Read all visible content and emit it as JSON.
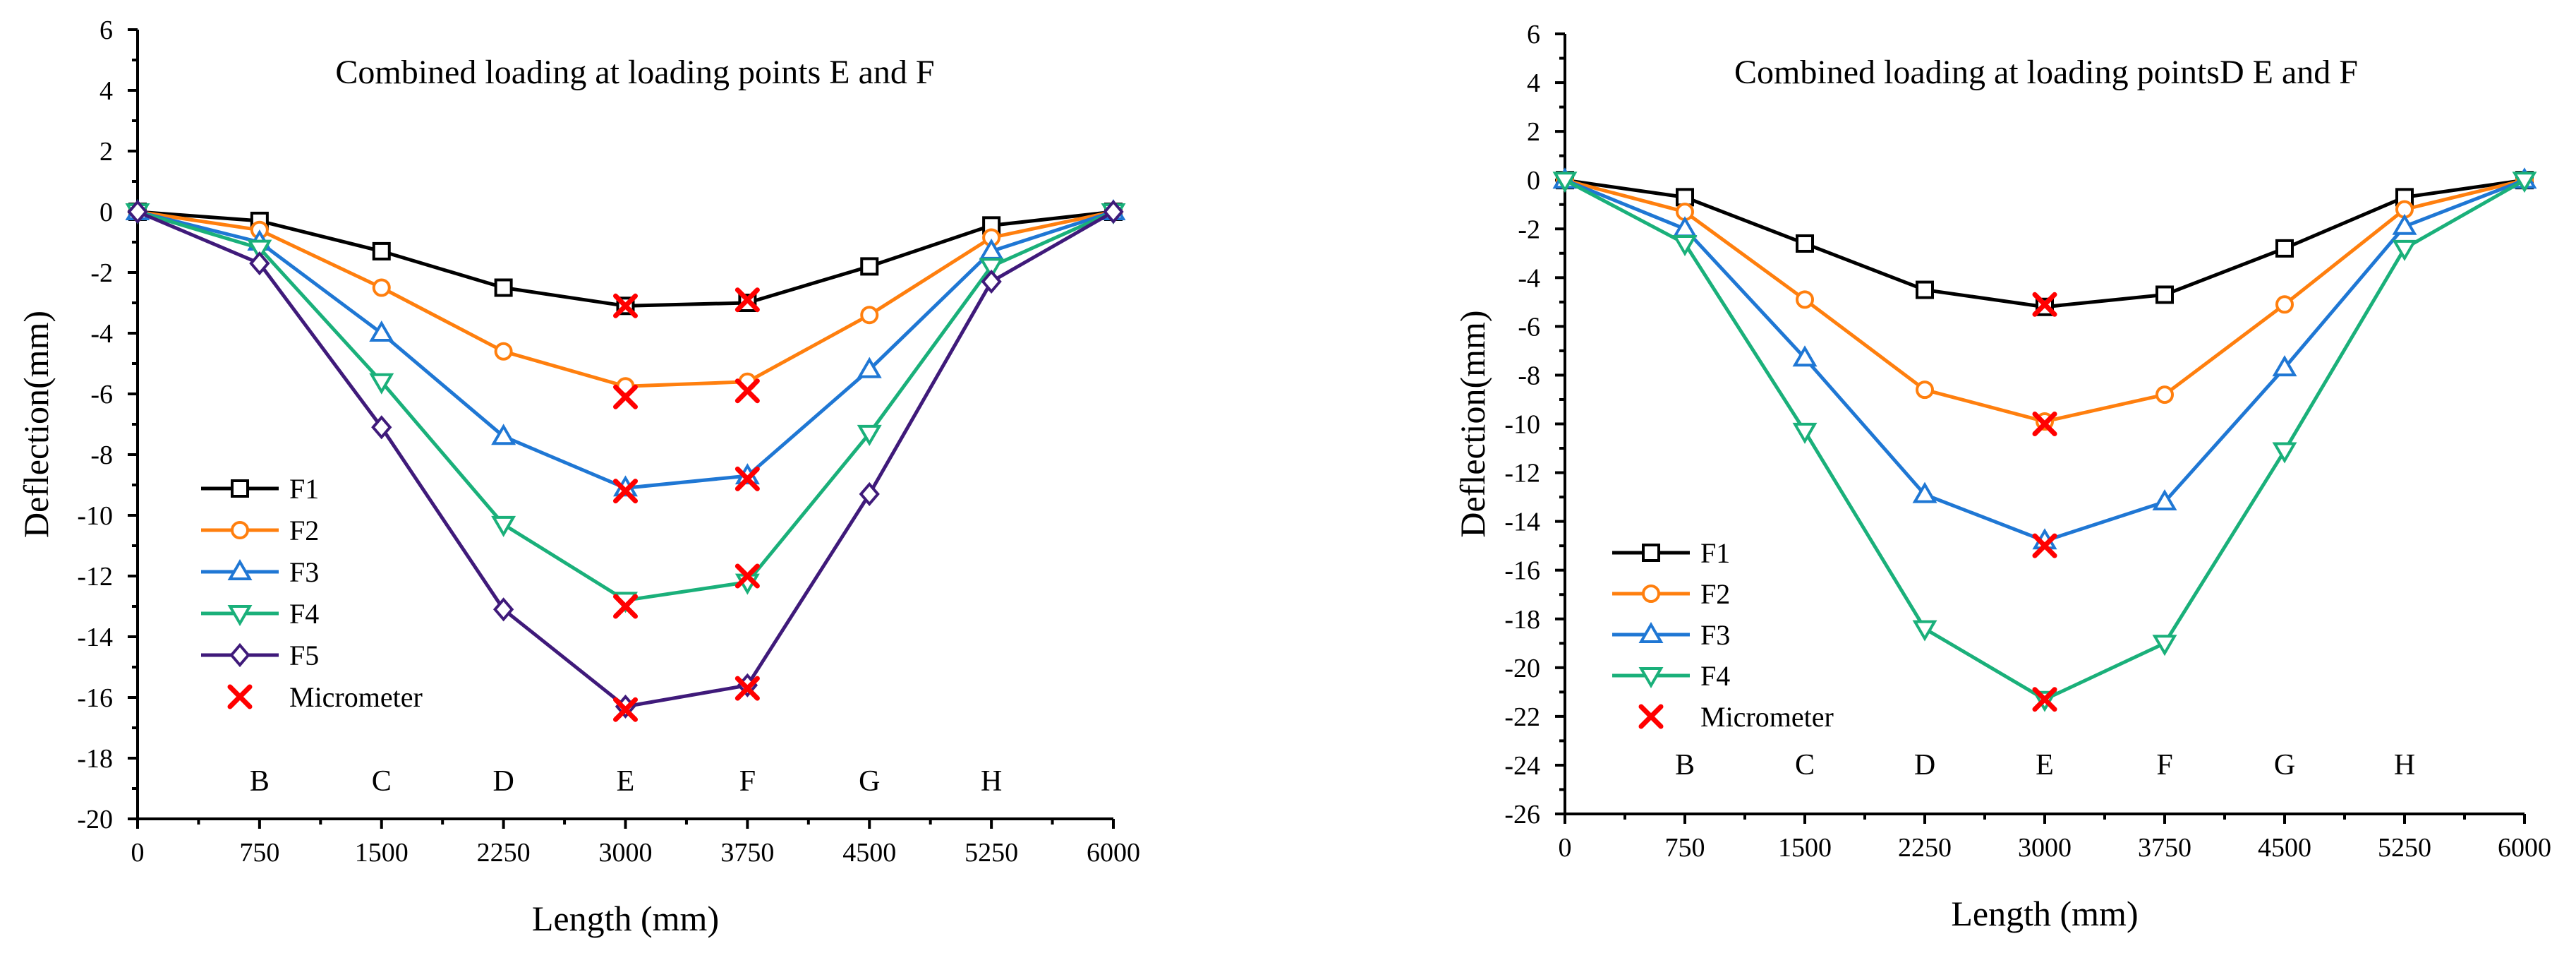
{
  "chart_data": [
    {
      "type": "line",
      "title": "Combined loading at loading points E and F",
      "xlabel": "Length (mm)",
      "ylabel": "Deflection(mm)",
      "x": [
        0,
        750,
        1500,
        2250,
        3000,
        3750,
        4500,
        5250,
        6000
      ],
      "xticks": [
        "0",
        "750",
        "1500",
        "2250",
        "3000",
        "3750",
        "4500",
        "5250",
        "6000"
      ],
      "xlim": [
        0,
        6000
      ],
      "ylim": [
        -20,
        6
      ],
      "yticks": [
        "6",
        "4",
        "2",
        "0",
        "-2",
        "-4",
        "-6",
        "-8",
        "-10",
        "-12",
        "-14",
        "-16",
        "-18",
        "-20"
      ],
      "point_labels": [
        "B",
        "C",
        "D",
        "E",
        "F",
        "G",
        "H"
      ],
      "series": [
        {
          "name": "F1",
          "color": "#000000",
          "marker": "square",
          "values": [
            0,
            -0.3,
            -1.3,
            -2.5,
            -3.1,
            -3.0,
            -1.8,
            -0.45,
            0
          ]
        },
        {
          "name": "F2",
          "color": "#ff7f0e",
          "marker": "circle",
          "values": [
            0,
            -0.6,
            -2.5,
            -4.6,
            -5.75,
            -5.6,
            -3.4,
            -0.85,
            0
          ]
        },
        {
          "name": "F3",
          "color": "#1f77d4",
          "marker": "triangle-up",
          "values": [
            0,
            -1.0,
            -4.0,
            -7.4,
            -9.1,
            -8.7,
            -5.2,
            -1.3,
            0
          ]
        },
        {
          "name": "F4",
          "color": "#1ab07a",
          "marker": "triangle-down",
          "values": [
            0,
            -1.2,
            -5.6,
            -10.3,
            -12.8,
            -12.2,
            -7.3,
            -1.8,
            0
          ]
        },
        {
          "name": "F5",
          "color": "#3f1a7a",
          "marker": "diamond",
          "values": [
            0,
            -1.7,
            -7.1,
            -13.1,
            -16.3,
            -15.6,
            -9.3,
            -2.3,
            0
          ]
        }
      ],
      "micrometer": {
        "name": "Micrometer",
        "color": "#ff0000",
        "x": [
          3000,
          3000,
          3000,
          3000,
          3000,
          3750,
          3750,
          3750,
          3750,
          3750
        ],
        "values": [
          -3.1,
          -6.1,
          -9.2,
          -13.0,
          -16.4,
          -2.9,
          -5.9,
          -8.8,
          -12.0,
          -15.7
        ]
      },
      "legend": [
        "F1",
        "F2",
        "F3",
        "F4",
        "F5",
        "Micrometer"
      ]
    },
    {
      "type": "line",
      "title": "Combined loading at loading pointsD  E and F",
      "xlabel": "Length (mm)",
      "ylabel": "Deflection(mm)",
      "x": [
        0,
        750,
        1500,
        2250,
        3000,
        3750,
        4500,
        5250,
        6000
      ],
      "xticks": [
        "0",
        "750",
        "1500",
        "2250",
        "3000",
        "3750",
        "4500",
        "5250",
        "6000"
      ],
      "xlim": [
        0,
        6000
      ],
      "ylim": [
        -26,
        6
      ],
      "yticks": [
        "6",
        "4",
        "2",
        "0",
        "-2",
        "-4",
        "-6",
        "-8",
        "-10",
        "-12",
        "-14",
        "-16",
        "-18",
        "-20",
        "-22",
        "-24",
        "-26"
      ],
      "point_labels": [
        "B",
        "C",
        "D",
        "E",
        "F",
        "G",
        "H"
      ],
      "series": [
        {
          "name": "F1",
          "color": "#000000",
          "marker": "square",
          "values": [
            0,
            -0.7,
            -2.6,
            -4.5,
            -5.2,
            -4.7,
            -2.8,
            -0.7,
            0
          ]
        },
        {
          "name": "F2",
          "color": "#ff7f0e",
          "marker": "circle",
          "values": [
            0,
            -1.3,
            -4.9,
            -8.6,
            -9.9,
            -8.8,
            -5.1,
            -1.2,
            0
          ]
        },
        {
          "name": "F3",
          "color": "#1f77d4",
          "marker": "triangle-up",
          "values": [
            0,
            -2.0,
            -7.3,
            -12.9,
            -14.8,
            -13.2,
            -7.7,
            -1.9,
            0
          ]
        },
        {
          "name": "F4",
          "color": "#1ab07a",
          "marker": "triangle-down",
          "values": [
            0,
            -2.6,
            -10.3,
            -18.4,
            -21.3,
            -19.0,
            -11.1,
            -2.8,
            0
          ]
        }
      ],
      "micrometer": {
        "name": "Micrometer",
        "color": "#ff0000",
        "x": [
          3000,
          3000,
          3000,
          3000
        ],
        "values": [
          -5.1,
          -10.0,
          -15.0,
          -21.3
        ]
      },
      "legend": [
        "F1",
        "F2",
        "F3",
        "F4",
        "Micrometer"
      ]
    }
  ]
}
